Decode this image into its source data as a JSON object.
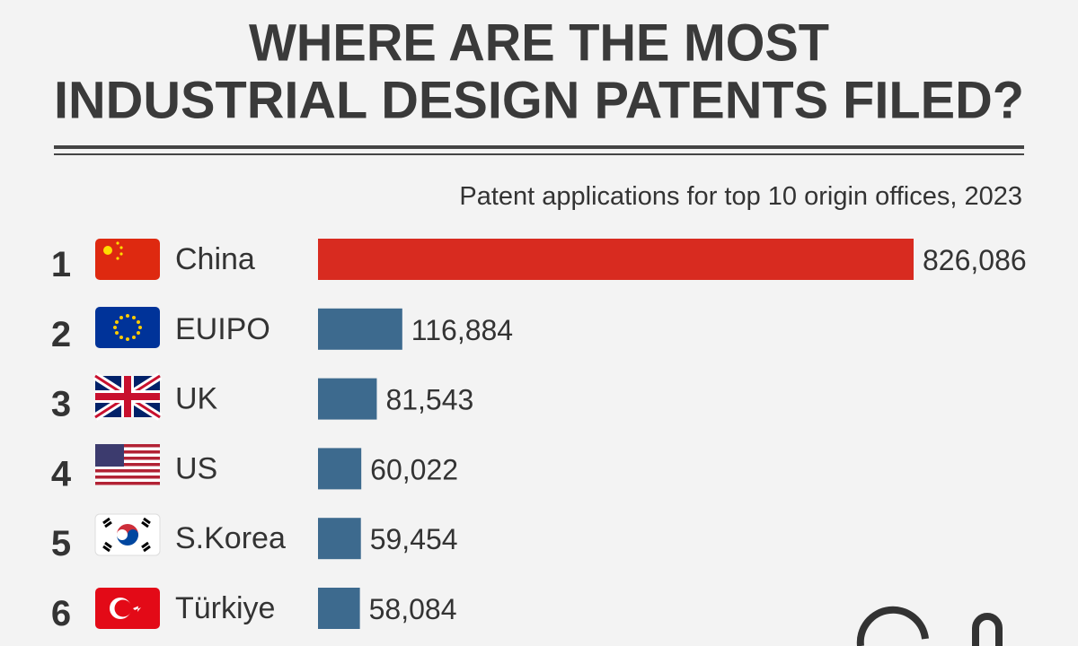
{
  "chart_data": {
    "type": "bar",
    "orientation": "horizontal",
    "title": [
      "WHERE ARE THE MOST",
      "INDUSTRIAL DESIGN PATENTS FILED?"
    ],
    "subtitle": "Patent applications for top 10 origin offices, 2023",
    "ranks": [
      "1",
      "2",
      "3",
      "4",
      "5",
      "6"
    ],
    "categories": [
      "China",
      "EUIPO",
      "UK",
      "US",
      "S.Korea",
      "Türkiye"
    ],
    "values": [
      826086,
      116884,
      81543,
      60022,
      59454,
      58084
    ],
    "value_labels": [
      "826,086",
      "116,884",
      "81,543",
      "60,022",
      "59,454",
      "58,084"
    ],
    "colors": [
      "#d82b20",
      "#3d6a8e",
      "#3d6a8e",
      "#3d6a8e",
      "#3d6a8e",
      "#3d6a8e"
    ]
  }
}
